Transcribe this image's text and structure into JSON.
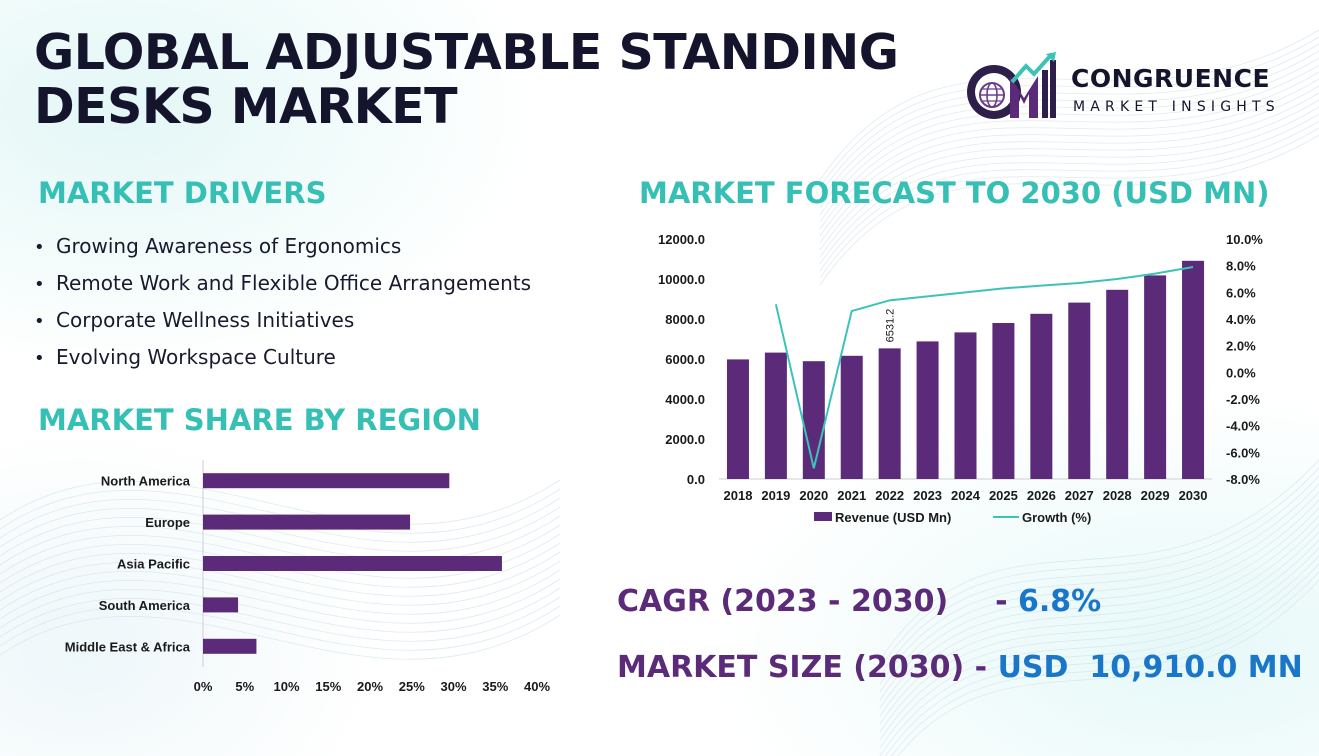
{
  "title": {
    "line1": "GLOBAL ADJUSTABLE STANDING",
    "line2": "DESKS MARKET"
  },
  "logo": {
    "name": "CONGRUENCE",
    "tagline": "MARKET INSIGHTS",
    "icon": "cm-globe-logo"
  },
  "drivers": {
    "heading": "MARKET DRIVERS",
    "items": [
      "Growing Awareness of Ergonomics",
      "Remote Work and Flexible Office Arrangements",
      "Corporate Wellness Initiatives",
      "Evolving Workspace Culture"
    ]
  },
  "region": {
    "heading": "MARKET SHARE BY REGION"
  },
  "forecast": {
    "heading": "MARKET FORECAST TO 2030 (USD MN)"
  },
  "stats": {
    "cagr_label": "CAGR (2023 - 2030)",
    "cagr_sep": "- ",
    "cagr_value": "6.8%",
    "size_label": "MARKET SIZE (2030)",
    "size_sep": "- ",
    "size_value": "USD  10,910.0 MN"
  },
  "colors": {
    "bar": "#5b2a78",
    "line": "#3cc3b8",
    "heading": "#36bfb5",
    "title": "#14142c"
  },
  "chart_data": [
    {
      "type": "bar",
      "orientation": "horizontal",
      "categories": [
        "North America",
        "Europe",
        "Asia Pacific",
        "South America",
        "Middle East & Africa"
      ],
      "values": [
        29.5,
        24.8,
        35.8,
        4.2,
        6.4
      ],
      "xlim": [
        0,
        40
      ],
      "x_ticks": [
        "0%",
        "5%",
        "10%",
        "15%",
        "20%",
        "25%",
        "30%",
        "35%",
        "40%"
      ],
      "title": "",
      "xlabel": "",
      "ylabel": ""
    },
    {
      "type": "bar",
      "categories": [
        "2018",
        "2019",
        "2020",
        "2021",
        "2022",
        "2023",
        "2024",
        "2025",
        "2026",
        "2027",
        "2028",
        "2029",
        "2030"
      ],
      "series": [
        {
          "name": "Revenue (USD Mn)",
          "type": "bar",
          "values": [
            5980,
            6320,
            5890,
            6160,
            6531.2,
            6880,
            7330,
            7800,
            8260,
            8820,
            9460,
            10180,
            10910
          ]
        },
        {
          "name": "Growth (%)",
          "type": "line",
          "axis": "right",
          "values": [
            null,
            5.1,
            -7.2,
            4.6,
            5.4,
            5.7,
            6.0,
            6.3,
            6.5,
            6.7,
            7.0,
            7.4,
            7.9
          ]
        }
      ],
      "ylim": [
        0,
        12000
      ],
      "y_ticks": [
        "0.0",
        "2000.0",
        "4000.0",
        "6000.0",
        "8000.0",
        "10000.0",
        "12000.0"
      ],
      "y2lim": [
        -8,
        10
      ],
      "y2_ticks": [
        "-8.0%",
        "-6.0%",
        "-4.0%",
        "-2.0%",
        "0.0%",
        "2.0%",
        "4.0%",
        "6.0%",
        "8.0%",
        "10.0%"
      ],
      "data_labels": [
        {
          "category": "2022",
          "text": "6531.2"
        }
      ],
      "legend": "bottom",
      "title": "",
      "xlabel": "",
      "ylabel": ""
    }
  ]
}
